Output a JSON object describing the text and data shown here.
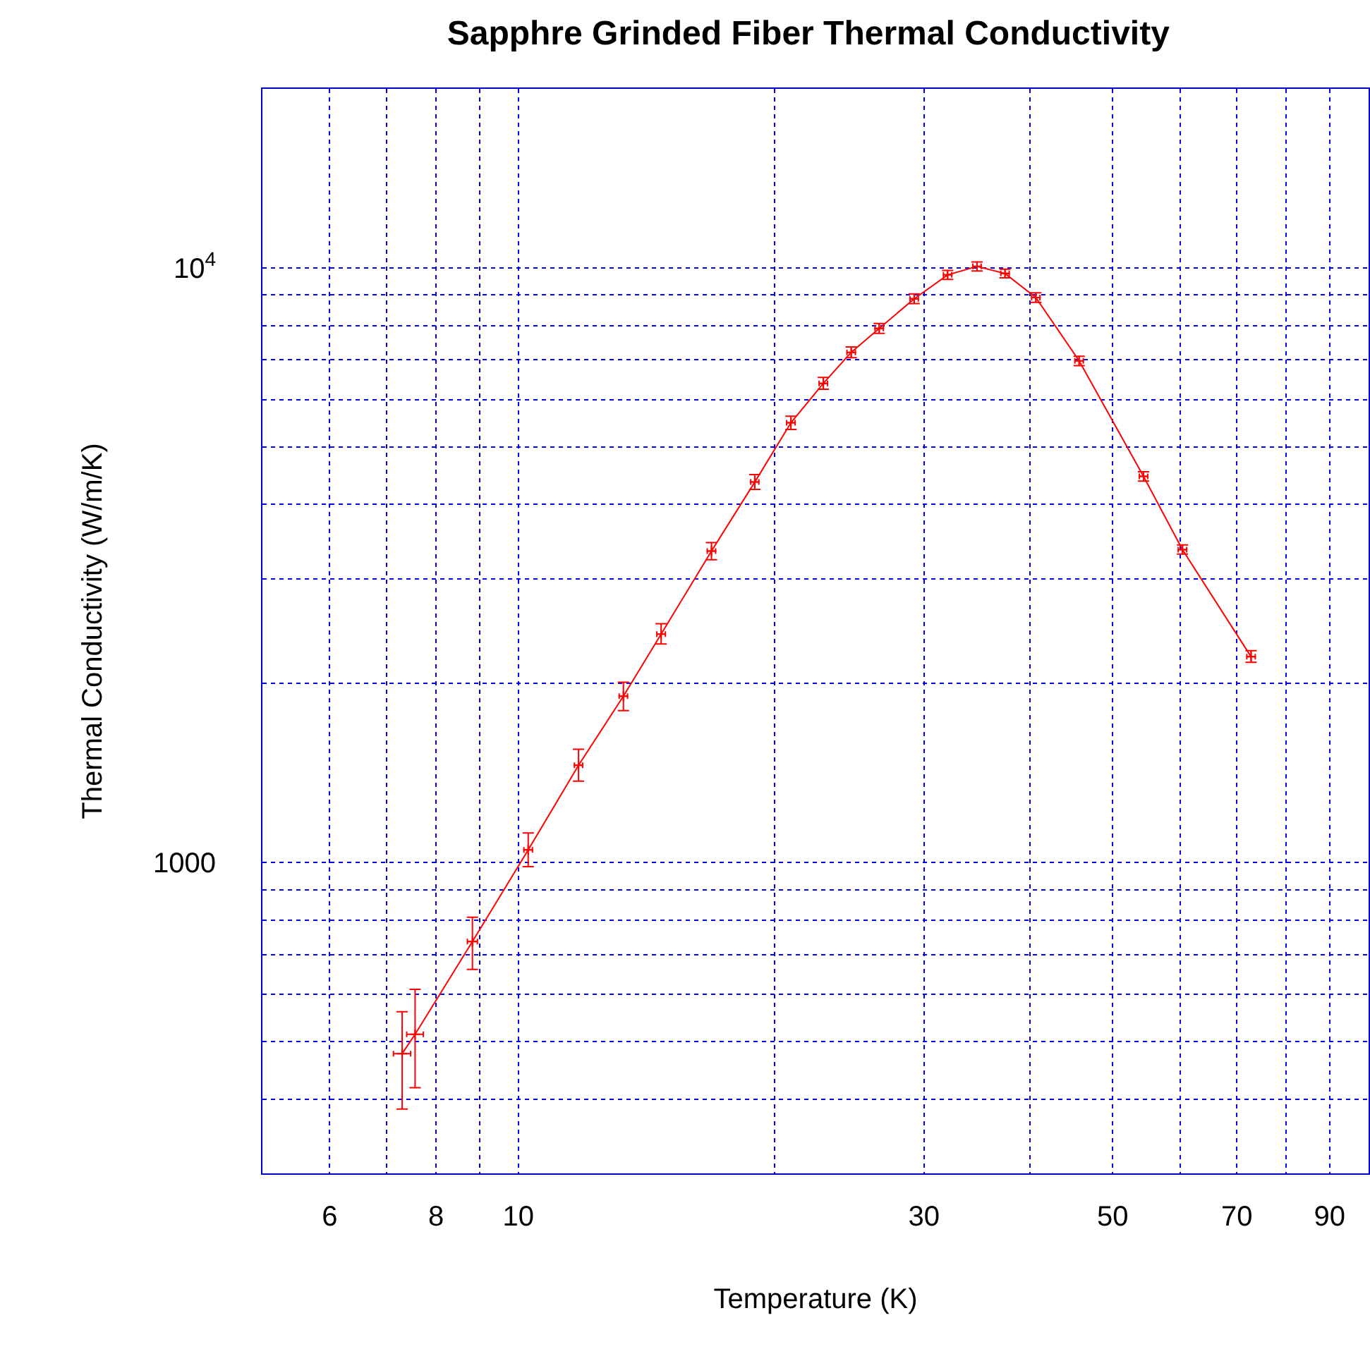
{
  "chart_data": {
    "type": "line",
    "title": "Sapphre Grinded Fiber Thermal Conductivity",
    "xlabel": "Temperature (K)",
    "ylabel": "Thermal Conductivity (W/m/K)",
    "log": "xy",
    "grid": true,
    "marker": "cross",
    "line_style": "solid",
    "xlim": [
      5,
      100
    ],
    "ylim": [
      300,
      20000
    ],
    "xticks": [
      6,
      {
        "value": 7,
        "label": null
      },
      8,
      {
        "value": 9,
        "label": null
      },
      10,
      {
        "value": 20,
        "label": null
      },
      30,
      {
        "value": 40,
        "label": null
      },
      50,
      {
        "value": 60,
        "label": null
      },
      70,
      {
        "value": 80,
        "label": null
      },
      90
    ],
    "yticks": [
      {
        "value": 400,
        "label": null
      },
      {
        "value": 500,
        "label": null
      },
      {
        "value": 600,
        "label": null
      },
      {
        "value": 700,
        "label": null
      },
      {
        "value": 800,
        "label": null
      },
      {
        "value": 900,
        "label": null
      },
      1000,
      {
        "value": 2000,
        "label": null
      },
      {
        "value": 3000,
        "label": null
      },
      {
        "value": 4000,
        "label": null
      },
      {
        "value": 5000,
        "label": null
      },
      {
        "value": 6000,
        "label": null
      },
      {
        "value": 7000,
        "label": null
      },
      {
        "value": 8000,
        "label": null
      },
      {
        "value": 9000,
        "label": null
      },
      {
        "value": 10000,
        "label": "10$^{4}$"
      }
    ],
    "series": [
      {
        "color": "#ff0000",
        "x": [
          7.3,
          7.56,
          8.83,
          10.27,
          11.77,
          13.29,
          14.72,
          16.87,
          18.97,
          20.92,
          22.84,
          24.63,
          26.57,
          29.21,
          31.98,
          34.63,
          37.36,
          40.61,
          45.66,
          54.36,
          60.41,
          72.74
        ],
        "values": [
          477,
          514,
          736,
          1050,
          1457,
          1904,
          2421,
          3340,
          4363,
          5488,
          6393,
          7210,
          7907,
          8872,
          9730,
          10055,
          9784,
          8913,
          6976,
          4460,
          3357,
          2218
        ],
        "errors": [
          [
            385,
            561
          ],
          [
            418,
            612
          ],
          [
            661,
            809
          ],
          [
            984,
            1121
          ],
          [
            1370,
            1550
          ],
          [
            1800,
            2010
          ],
          [
            2330,
            2520
          ],
          [
            3230,
            3450
          ],
          [
            4240,
            4490
          ],
          [
            5350,
            5630
          ],
          [
            6250,
            6540
          ],
          [
            7060,
            7360
          ],
          [
            7760,
            8060
          ],
          [
            8710,
            9040
          ],
          [
            9560,
            9900
          ],
          [
            9880,
            10230
          ],
          [
            9620,
            9950
          ],
          [
            8750,
            9080
          ],
          [
            6850,
            7100
          ],
          [
            4380,
            4540
          ],
          [
            3300,
            3420
          ],
          [
            2170,
            2270
          ]
        ],
        "xerrors": [
          0.17,
          0.17,
          0.12,
          0.12,
          0.13,
          0.15,
          0.17,
          0.19,
          0.21,
          0.24,
          0.26,
          0.28,
          0.3,
          0.33,
          0.36,
          0.39,
          0.42,
          0.46,
          0.52,
          0.62,
          0.69,
          0.83
        ]
      }
    ]
  }
}
